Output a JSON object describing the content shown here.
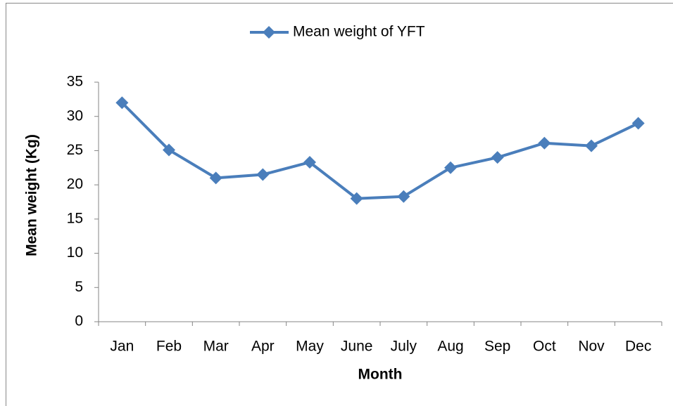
{
  "chart_data": {
    "type": "line",
    "x_label": "Month",
    "y_label": "Mean weight (Kg)",
    "categories": [
      "Jan",
      "Feb",
      "Mar",
      "Apr",
      "May",
      "June",
      "July",
      "Aug",
      "Sep",
      "Oct",
      "Nov",
      "Dec"
    ],
    "series": [
      {
        "name": "Mean weight of YFT",
        "color": "#4a7ebb",
        "values": [
          32,
          25.1,
          21,
          21.5,
          23.3,
          18,
          18.3,
          22.5,
          24,
          26.1,
          25.7,
          29
        ]
      }
    ],
    "ylim": [
      0,
      35
    ],
    "yticks": [
      0,
      5,
      10,
      15,
      20,
      25,
      30,
      35
    ],
    "grid": false,
    "legend": "top"
  }
}
